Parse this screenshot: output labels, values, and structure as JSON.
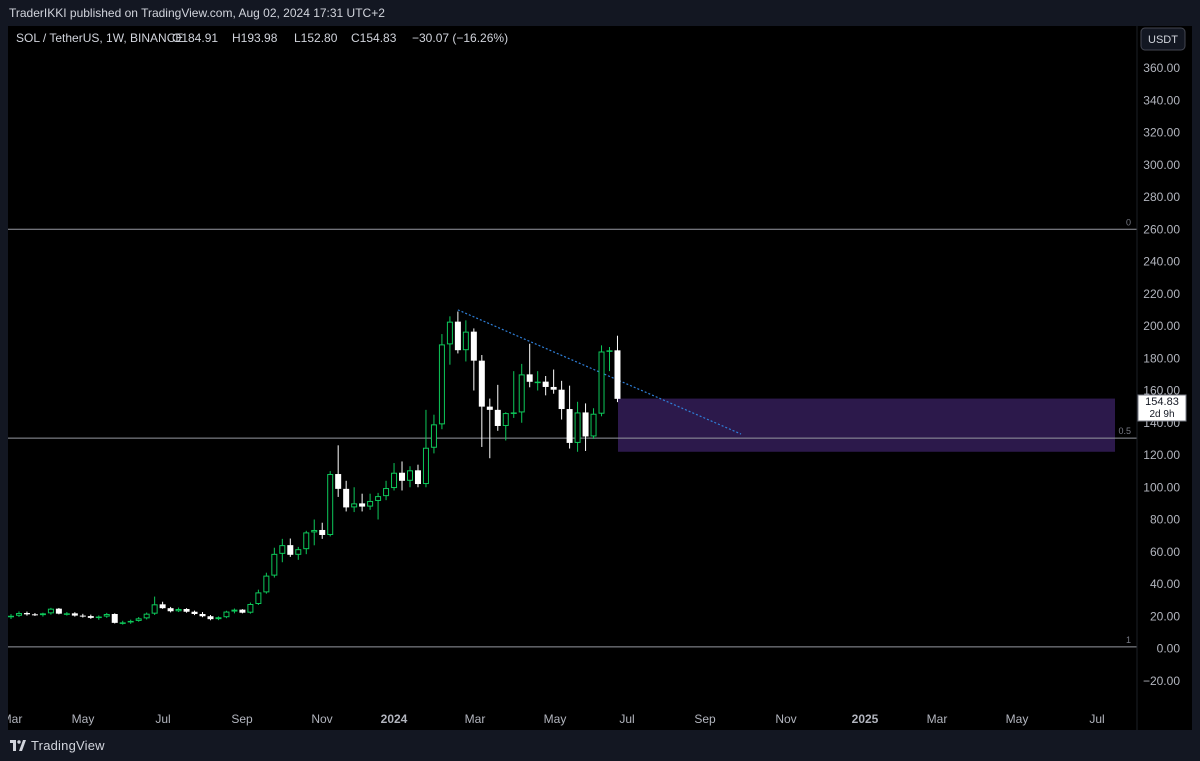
{
  "header": {
    "published": "TraderIKKI published on TradingView.com, Aug 02, 2024 17:31 UTC+2"
  },
  "legend": {
    "symbol": "SOL / TetherUS, 1W, BINANCE",
    "open": "O184.91",
    "high": "H193.98",
    "low": "L152.80",
    "close": "C154.83",
    "change": "−30.07 (−16.26%)"
  },
  "currency_button": "USDT",
  "price_label": {
    "value": "154.83",
    "countdown": "2d 9h"
  },
  "footer": {
    "brand": "TradingView"
  },
  "colors": {
    "up": "#0dc85a",
    "down": "#ffffff",
    "zone": "#2e1a4f",
    "fib": "#9598a1",
    "trend": "#2f7fd8"
  },
  "chart_data": {
    "type": "candlestick",
    "title": "SOL / TetherUS, 1W, BINANCE",
    "ylim": [
      -30,
      375
    ],
    "y_ticks": [
      "360.00",
      "340.00",
      "320.00",
      "300.00",
      "280.00",
      "260.00",
      "240.00",
      "220.00",
      "200.00",
      "180.00",
      "160.00",
      "140.00",
      "120.00",
      "100.00",
      "80.00",
      "60.00",
      "40.00",
      "20.00",
      "0.00",
      "−20.00"
    ],
    "x_ticks": [
      "Mar",
      "May",
      "Jul",
      "Sep",
      "Nov",
      "2024",
      "Mar",
      "May",
      "Jul",
      "Sep",
      "Nov",
      "2025",
      "Mar",
      "May",
      "Jul"
    ],
    "fib_levels": [
      {
        "label": "0",
        "value": 260
      },
      {
        "label": "0.5",
        "value": 130.5
      },
      {
        "label": "1",
        "value": 1
      }
    ],
    "zone": {
      "low": 122,
      "high": 155
    },
    "trendline": {
      "from": 210,
      "to": 133
    },
    "candles": [
      [
        19.8,
        21.3,
        18.3,
        20.3
      ],
      [
        20.3,
        23.0,
        19.5,
        22.0
      ],
      [
        22.0,
        22.9,
        20.4,
        21.2
      ],
      [
        21.2,
        22.0,
        20.2,
        20.7
      ],
      [
        20.7,
        22.2,
        19.8,
        21.8
      ],
      [
        21.8,
        25.2,
        21.0,
        24.7
      ],
      [
        24.7,
        25.1,
        21.2,
        21.6
      ],
      [
        21.6,
        22.6,
        20.4,
        21.8
      ],
      [
        21.8,
        22.5,
        19.8,
        20.4
      ],
      [
        20.4,
        21.5,
        19.2,
        20.1
      ],
      [
        20.1,
        21.0,
        18.4,
        19.0
      ],
      [
        19.0,
        20.5,
        17.8,
        19.8
      ],
      [
        19.8,
        22.1,
        19.0,
        21.4
      ],
      [
        21.4,
        21.8,
        15.5,
        15.9
      ],
      [
        15.9,
        17.2,
        14.8,
        16.2
      ],
      [
        16.2,
        17.9,
        15.3,
        17.1
      ],
      [
        17.1,
        19.5,
        16.6,
        18.7
      ],
      [
        18.7,
        22.3,
        18.0,
        21.6
      ],
      [
        21.6,
        32.2,
        20.8,
        27.4
      ],
      [
        27.4,
        29.0,
        24.6,
        25.0
      ],
      [
        25.0,
        25.8,
        22.4,
        23.1
      ],
      [
        23.1,
        25.4,
        22.6,
        24.5
      ],
      [
        24.5,
        25.0,
        22.2,
        22.8
      ],
      [
        22.8,
        23.5,
        20.7,
        21.4
      ],
      [
        21.4,
        22.6,
        19.4,
        20.0
      ],
      [
        20.0,
        20.8,
        17.5,
        18.2
      ],
      [
        18.2,
        19.9,
        17.6,
        19.4
      ],
      [
        19.4,
        23.4,
        18.8,
        22.9
      ],
      [
        22.9,
        24.8,
        21.8,
        24.1
      ],
      [
        24.1,
        24.4,
        21.8,
        22.2
      ],
      [
        22.2,
        28.5,
        21.6,
        27.6
      ],
      [
        27.6,
        36.5,
        27.0,
        34.8
      ],
      [
        34.8,
        47.0,
        34.0,
        45.2
      ],
      [
        45.2,
        62.5,
        44.0,
        58.7
      ],
      [
        58.7,
        68.0,
        53.5,
        64.1
      ],
      [
        64.1,
        68.2,
        56.8,
        58.1
      ],
      [
        58.1,
        63.0,
        55.0,
        61.6
      ],
      [
        61.6,
        73.0,
        58.5,
        72.0
      ],
      [
        72.0,
        80.0,
        64.0,
        73.5
      ],
      [
        73.5,
        78.0,
        68.0,
        70.4
      ],
      [
        70.4,
        110.0,
        69.5,
        108.2
      ],
      [
        108.2,
        126.0,
        94.0,
        99.0
      ],
      [
        99.0,
        104.0,
        85.0,
        87.5
      ],
      [
        87.5,
        100.0,
        84.6,
        90.0
      ],
      [
        90.0,
        96.0,
        85.0,
        88.0
      ],
      [
        88.0,
        96.0,
        86.0,
        91.5
      ],
      [
        91.5,
        96.5,
        80.0,
        94.5
      ],
      [
        94.5,
        104.0,
        92.0,
        99.5
      ],
      [
        99.5,
        115.0,
        98.0,
        109.0
      ],
      [
        109.0,
        116.0,
        98.0,
        104.0
      ],
      [
        104.0,
        113.0,
        100.0,
        110.5
      ],
      [
        110.5,
        114.0,
        100.0,
        102.0
      ],
      [
        102.0,
        148.0,
        100.0,
        124.5
      ],
      [
        124.5,
        145.0,
        121.0,
        139.0
      ],
      [
        139.0,
        195.0,
        136.0,
        188.6
      ],
      [
        188.6,
        206.0,
        176.0,
        202.7
      ],
      [
        202.7,
        209.0,
        183.0,
        185.0
      ],
      [
        185.0,
        203.5,
        178.0,
        196.5
      ],
      [
        196.5,
        198.5,
        160.0,
        178.5
      ],
      [
        178.5,
        182.0,
        125.0,
        150.0
      ],
      [
        150.0,
        155.0,
        118.0,
        148.0
      ],
      [
        148.0,
        163.5,
        135.0,
        138.0
      ],
      [
        138.0,
        146.5,
        129.0,
        146.0
      ],
      [
        146.0,
        172.0,
        143.0,
        146.4
      ],
      [
        146.4,
        176.5,
        140.0,
        170.0
      ],
      [
        170.0,
        189.0,
        162.0,
        165.4
      ],
      [
        165.4,
        172.0,
        160.0,
        165.5
      ],
      [
        165.5,
        169.0,
        157.0,
        162.2
      ],
      [
        162.2,
        173.0,
        158.0,
        160.5
      ],
      [
        160.5,
        166.0,
        142.0,
        148.5
      ],
      [
        148.5,
        163.0,
        124.0,
        127.5
      ],
      [
        127.5,
        153.0,
        122.0,
        146.4
      ],
      [
        146.4,
        152.0,
        122.5,
        131.5
      ],
      [
        131.5,
        149.0,
        130.0,
        145.6
      ],
      [
        145.6,
        188.0,
        144.0,
        184.2
      ],
      [
        184.2,
        187.0,
        172.0,
        184.9
      ],
      [
        184.91,
        193.98,
        152.8,
        154.83
      ]
    ]
  }
}
